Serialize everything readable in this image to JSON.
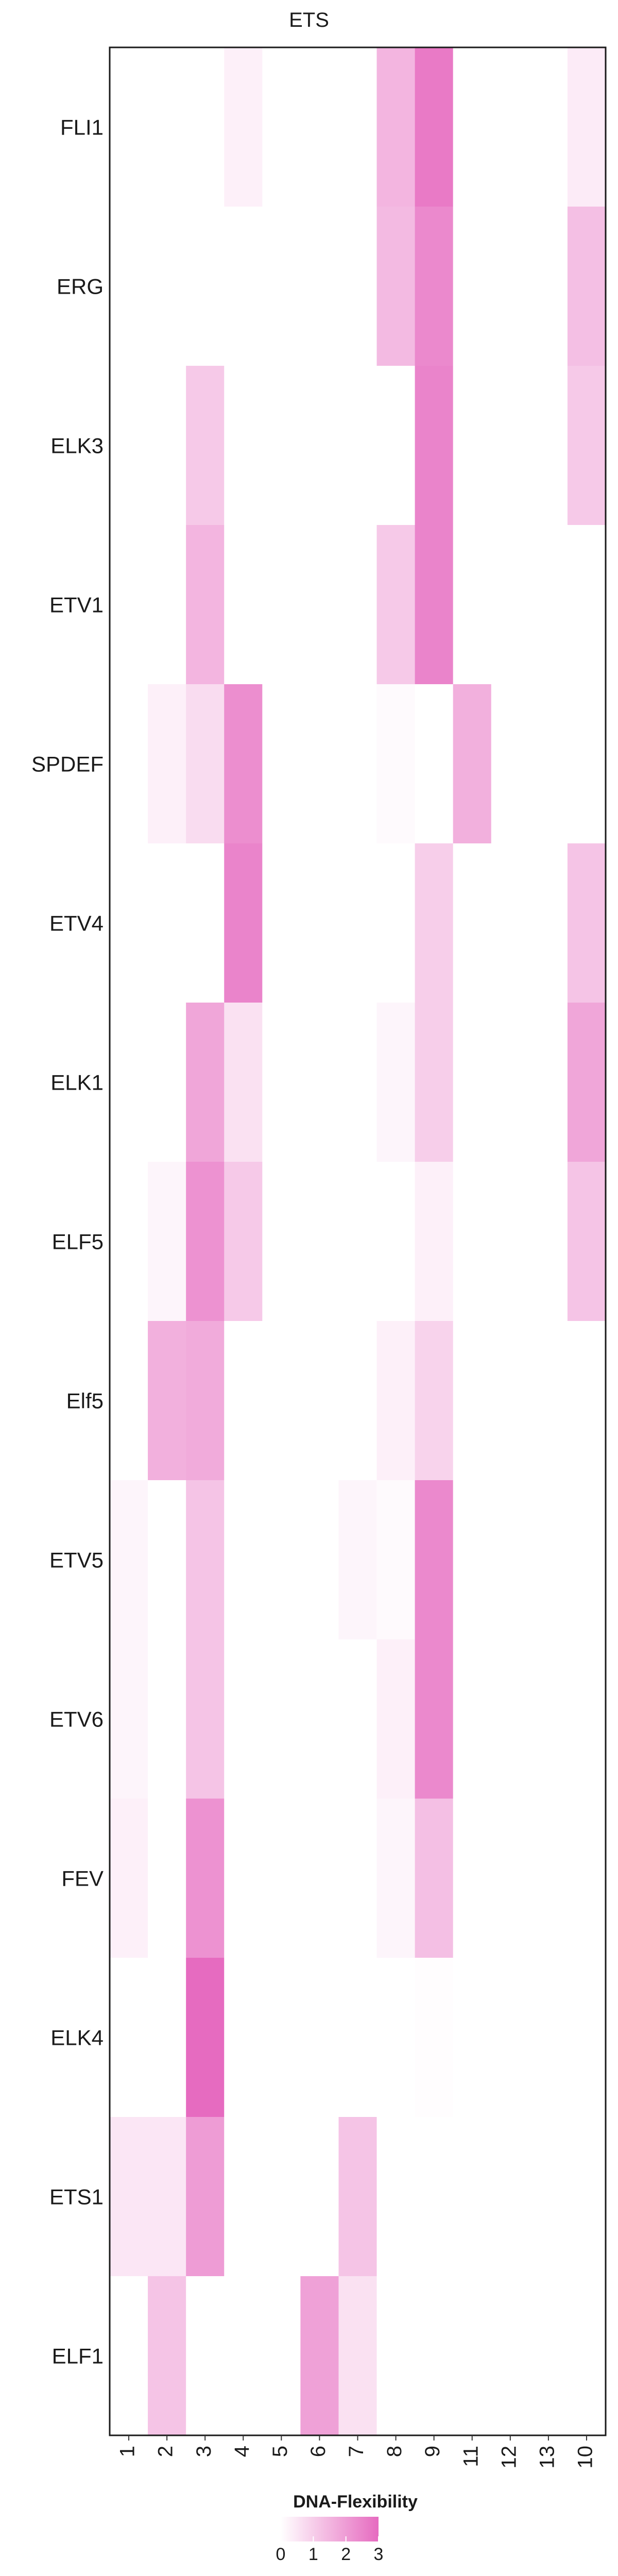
{
  "chart_data": {
    "type": "heatmap",
    "title": "ETS",
    "rows": [
      "FLI1",
      "ERG",
      "ELK3",
      "ETV1",
      "SPDEF",
      "ETV4",
      "ELK1",
      "ELF5",
      "Elf5",
      "ETV5",
      "ETV6",
      "FEV",
      "ELK4",
      "ETS1",
      "ELF1"
    ],
    "columns": [
      "1",
      "2",
      "3",
      "4",
      "5",
      "6",
      "7",
      "8",
      "9",
      "11",
      "12",
      "13",
      "10"
    ],
    "values": [
      [
        0,
        0,
        0,
        0.3,
        0,
        0,
        0,
        1.5,
        2.7,
        0,
        0,
        0,
        0.4
      ],
      [
        0,
        0,
        0,
        0,
        0,
        0,
        0,
        1.4,
        2.4,
        0,
        0,
        0,
        1.3
      ],
      [
        0,
        0,
        1.1,
        0,
        0,
        0,
        0,
        0,
        2.5,
        0,
        0,
        0,
        1.1
      ],
      [
        0,
        0,
        1.5,
        0,
        0,
        0,
        0,
        1.1,
        2.5,
        0,
        0,
        0,
        0
      ],
      [
        0,
        0.3,
        0.7,
        2.3,
        0,
        0,
        0,
        0.1,
        0,
        1.6,
        0,
        0,
        0
      ],
      [
        0,
        0,
        0,
        2.5,
        0,
        0,
        0,
        0,
        1.0,
        0,
        0,
        0,
        1.2
      ],
      [
        0,
        0,
        1.8,
        0.6,
        0,
        0,
        0,
        0.2,
        1.0,
        0,
        0,
        0,
        1.8
      ],
      [
        0,
        0.2,
        2.2,
        1.1,
        0,
        0,
        0,
        0,
        0.3,
        0,
        0,
        0,
        1.2
      ],
      [
        0,
        1.6,
        1.7,
        0,
        0,
        0,
        0,
        0.3,
        0.9,
        0,
        0,
        0,
        0
      ],
      [
        0.2,
        0,
        1.2,
        0,
        0,
        0,
        0.2,
        0.1,
        2.4,
        0,
        0,
        0,
        0
      ],
      [
        0.2,
        0,
        1.2,
        0,
        0,
        0,
        0,
        0.3,
        2.4,
        0,
        0,
        0,
        0
      ],
      [
        0.3,
        0,
        2.2,
        0,
        0,
        0,
        0,
        0.2,
        1.3,
        0,
        0,
        0,
        0
      ],
      [
        0,
        0,
        3.0,
        0,
        0,
        0,
        0,
        0,
        0.05,
        0,
        0,
        0,
        0
      ],
      [
        0.5,
        0.5,
        2.0,
        0,
        0,
        0,
        1.2,
        0,
        0,
        0,
        0,
        0,
        0
      ],
      [
        0,
        1.2,
        0,
        0,
        0,
        1.9,
        0.6,
        0,
        0,
        0,
        0,
        0,
        0
      ]
    ],
    "legend": {
      "title": "DNA-Flexibility",
      "ticks": [
        "0",
        "1",
        "2",
        "3"
      ],
      "min": 0,
      "max": 3,
      "position": "bottom"
    },
    "colors": {
      "low": "#ffffff",
      "high": "#e66bc0"
    },
    "grid": false
  }
}
